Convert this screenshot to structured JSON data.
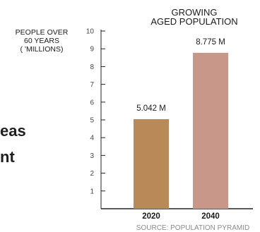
{
  "cut_text": [
    "eas",
    "nt"
  ],
  "chart_data": {
    "type": "bar",
    "title": [
      "GROWING",
      "AGED POPULATION"
    ],
    "ylabel": [
      "PEOPLE OVER",
      "60 YEARS",
      "( 'MILLIONS)"
    ],
    "xlabel": "",
    "categories": [
      "2020",
      "2040"
    ],
    "values": [
      5.042,
      8.775
    ],
    "data_labels": [
      "5.042 M",
      "8.775 M"
    ],
    "bar_colors": [
      "#b98a58",
      "#c9968a"
    ],
    "ylim": [
      0,
      10
    ],
    "yticks": [
      "1",
      "2",
      "3",
      "4",
      "5",
      "6",
      "7",
      "8",
      "9",
      "10"
    ],
    "grid": false,
    "source": "SOURCE: POPULATION PYRAMID"
  }
}
